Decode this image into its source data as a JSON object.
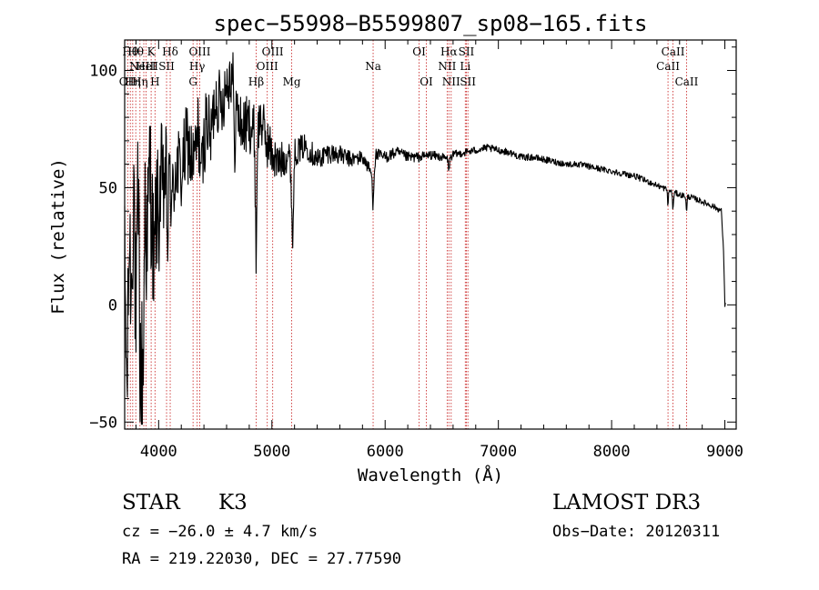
{
  "chart_data": {
    "type": "line",
    "title": "spec−55998−B5599807_sp08−165.fits",
    "xlabel": "Wavelength (Å)",
    "ylabel": "Flux (relative)",
    "xlim": [
      3700,
      9100
    ],
    "ylim": [
      -53,
      113
    ],
    "xticks": [
      4000,
      5000,
      6000,
      7000,
      8000,
      9000
    ],
    "yticks": [
      -50,
      0,
      50,
      100
    ],
    "ytick_labels": [
      "−50",
      "0",
      "50",
      "100"
    ],
    "series": [
      {
        "name": "spectrum",
        "color": "#000000",
        "anchors": [
          [
            3700,
            20
          ],
          [
            3720,
            -40
          ],
          [
            3740,
            30
          ],
          [
            3760,
            5
          ],
          [
            3780,
            60
          ],
          [
            3800,
            -20
          ],
          [
            3820,
            45
          ],
          [
            3840,
            -30
          ],
          [
            3860,
            -40
          ],
          [
            3880,
            50
          ],
          [
            3900,
            20
          ],
          [
            3920,
            60
          ],
          [
            3940,
            40
          ],
          [
            3960,
            10
          ],
          [
            3980,
            45
          ],
          [
            4000,
            35
          ],
          [
            4020,
            55
          ],
          [
            4040,
            45
          ],
          [
            4060,
            60
          ],
          [
            4080,
            30
          ],
          [
            4100,
            58
          ],
          [
            4120,
            40
          ],
          [
            4150,
            62
          ],
          [
            4200,
            55
          ],
          [
            4250,
            70
          ],
          [
            4300,
            60
          ],
          [
            4330,
            65
          ],
          [
            4350,
            75
          ],
          [
            4380,
            55
          ],
          [
            4420,
            80
          ],
          [
            4460,
            70
          ],
          [
            4500,
            90
          ],
          [
            4550,
            85
          ],
          [
            4600,
            95
          ],
          [
            4650,
            100
          ],
          [
            4700,
            80
          ],
          [
            4750,
            75
          ],
          [
            4800,
            78
          ],
          [
            4850,
            72
          ],
          [
            4862,
            70
          ],
          [
            4900,
            80
          ],
          [
            4950,
            70
          ],
          [
            5000,
            65
          ],
          [
            5050,
            60
          ],
          [
            5100,
            62
          ],
          [
            5150,
            65
          ],
          [
            5170,
            55
          ],
          [
            5183,
            40
          ],
          [
            5200,
            65
          ],
          [
            5300,
            68
          ],
          [
            5400,
            62
          ],
          [
            5500,
            65
          ],
          [
            5600,
            64
          ],
          [
            5700,
            62
          ],
          [
            5800,
            63
          ],
          [
            5893,
            55
          ],
          [
            5920,
            64
          ],
          [
            6000,
            63
          ],
          [
            6100,
            65
          ],
          [
            6200,
            63
          ],
          [
            6300,
            63
          ],
          [
            6400,
            64
          ],
          [
            6500,
            63
          ],
          [
            6563,
            62
          ],
          [
            6600,
            64
          ],
          [
            6700,
            65
          ],
          [
            6800,
            66
          ],
          [
            6900,
            67
          ],
          [
            7000,
            66
          ],
          [
            7100,
            65
          ],
          [
            7200,
            63
          ],
          [
            7300,
            63
          ],
          [
            7400,
            62
          ],
          [
            7500,
            61
          ],
          [
            7600,
            60
          ],
          [
            7700,
            60
          ],
          [
            7800,
            59
          ],
          [
            7900,
            58
          ],
          [
            8000,
            57
          ],
          [
            8100,
            56
          ],
          [
            8200,
            55
          ],
          [
            8300,
            53
          ],
          [
            8400,
            51
          ],
          [
            8500,
            49
          ],
          [
            8600,
            47
          ],
          [
            8700,
            46
          ],
          [
            8800,
            44
          ],
          [
            8900,
            42
          ],
          [
            8970,
            40
          ],
          [
            8990,
            20
          ],
          [
            9000,
            0
          ]
        ],
        "noise": [
          [
            3700,
            25
          ],
          [
            3850,
            45
          ],
          [
            3950,
            30
          ],
          [
            4200,
            18
          ],
          [
            4500,
            15
          ],
          [
            4900,
            12
          ],
          [
            5200,
            6
          ],
          [
            5800,
            3
          ],
          [
            6500,
            1.8
          ],
          [
            7000,
            1.5
          ],
          [
            8000,
            1.3
          ],
          [
            9000,
            1.2
          ]
        ],
        "absorption_lines": [
          {
            "center": 4860,
            "depth": 50,
            "width": 8
          },
          {
            "center": 4670,
            "depth": 40,
            "width": 6
          },
          {
            "center": 5183,
            "depth": 15,
            "width": 10
          },
          {
            "center": 5893,
            "depth": 12,
            "width": 8
          },
          {
            "center": 6563,
            "depth": 5,
            "width": 6
          },
          {
            "center": 8498,
            "depth": 6,
            "width": 6
          },
          {
            "center": 8542,
            "depth": 8,
            "width": 6
          },
          {
            "center": 8662,
            "depth": 7,
            "width": 6
          }
        ]
      }
    ],
    "lines": [
      {
        "wavelength": 3727,
        "label": "OII",
        "row": 3
      },
      {
        "wavelength": 3750,
        "label": "Hθ",
        "row": 1
      },
      {
        "wavelength": 3771,
        "label": "Hη",
        "row": 3
      },
      {
        "wavelength": 3798,
        "label": "Hθ",
        "row": 1
      },
      {
        "wavelength": 3835,
        "label": "Hη",
        "row": 3
      },
      {
        "wavelength": 3869,
        "label": "NeIII",
        "row": 2
      },
      {
        "wavelength": 3889,
        "label": "HeI",
        "row": 2
      },
      {
        "wavelength": 3934,
        "label": "K",
        "row": 1
      },
      {
        "wavelength": 3968,
        "label": "H",
        "row": 3
      },
      {
        "wavelength": 4070,
        "label": "SII",
        "row": 2
      },
      {
        "wavelength": 4102,
        "label": "Hδ",
        "row": 1
      },
      {
        "wavelength": 4304,
        "label": "G",
        "row": 3
      },
      {
        "wavelength": 4340,
        "label": "Hγ",
        "row": 2
      },
      {
        "wavelength": 4363,
        "label": "OIII",
        "row": 1
      },
      {
        "wavelength": 4861,
        "label": "Hβ",
        "row": 3
      },
      {
        "wavelength": 4959,
        "label": "OIII",
        "row": 2
      },
      {
        "wavelength": 5007,
        "label": "OIII",
        "row": 1
      },
      {
        "wavelength": 5175,
        "label": "Mg",
        "row": 3
      },
      {
        "wavelength": 5894,
        "label": "Na",
        "row": 2
      },
      {
        "wavelength": 6300,
        "label": "OI",
        "row": 1
      },
      {
        "wavelength": 6364,
        "label": "OI",
        "row": 3
      },
      {
        "wavelength": 6548,
        "label": "NII",
        "row": 2
      },
      {
        "wavelength": 6563,
        "label": "Hα",
        "row": 1
      },
      {
        "wavelength": 6583,
        "label": "NII",
        "row": 3
      },
      {
        "wavelength": 6708,
        "label": "Li",
        "row": 2
      },
      {
        "wavelength": 6717,
        "label": "SII",
        "row": 1
      },
      {
        "wavelength": 6731,
        "label": "SII",
        "row": 3
      },
      {
        "wavelength": 8498,
        "label": "CaII",
        "row": 2
      },
      {
        "wavelength": 8542,
        "label": "CaII",
        "row": 1
      },
      {
        "wavelength": 8662,
        "label": "CaII",
        "row": 3
      }
    ]
  },
  "info": {
    "object_class": "STAR",
    "subclass": "K3",
    "velocity": "cz = −26.0 ± 4.7 km/s",
    "coordinates": "RA = 219.22030, DEC =  27.77590",
    "survey": "LAMOST DR3",
    "obs_date": "Obs−Date: 20120311"
  },
  "colors": {
    "line_marker": "#cc3333",
    "spectrum": "#000000"
  }
}
